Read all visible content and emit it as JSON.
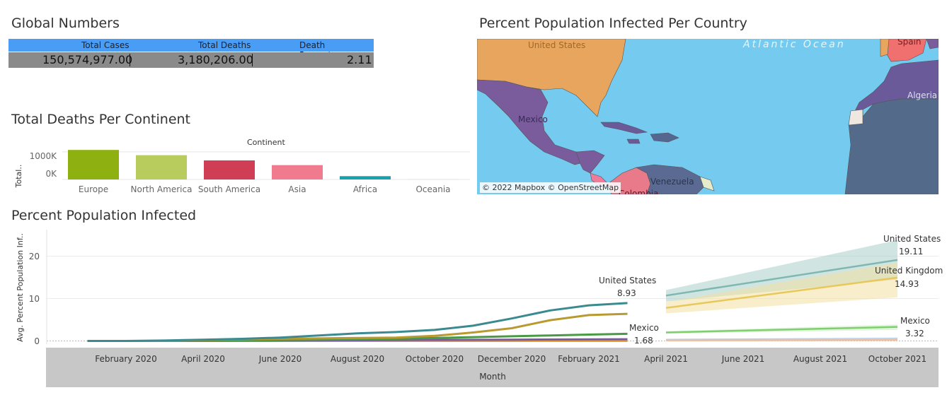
{
  "global_numbers": {
    "title": "Global Numbers",
    "columns": [
      "Total Cases",
      "Total Deaths",
      "Death Percentage"
    ],
    "values": [
      "150,574,977.00",
      "3,180,206.00",
      "2.11"
    ],
    "header_color": "#4a9df5"
  },
  "continent_chart": {
    "title": "Total Deaths Per Continent",
    "header": "Continent",
    "y_axis_label": "Total..",
    "y_ticks": [
      "1000K",
      "0K"
    ]
  },
  "map": {
    "title": "Percent Population Infected Per Country",
    "labels": [
      "United States",
      "Atlantic Ocean",
      "Spain",
      "Mexico",
      "Algeria",
      "Venezuela",
      "Colombia"
    ],
    "credit": "© 2022 Mapbox © OpenStreetMap",
    "ocean_color": "#75cbef"
  },
  "line_chart": {
    "title": "Percent Population Infected",
    "y_axis_label": "Avg. Percent Population Inf..",
    "x_axis_label": "Month",
    "y_ticks": [
      "20",
      "10",
      "0"
    ],
    "months": [
      "February 2020",
      "April 2020",
      "June 2020",
      "August 2020",
      "October 2020",
      "December 2020",
      "February 2021",
      "April 2021",
      "June 2021",
      "August 2021",
      "October 2021"
    ],
    "annotations": {
      "us_name": "United States",
      "us_value": "8.93",
      "mx_name": "Mexico",
      "mx_value": "1.68",
      "us_fc_name": "United States",
      "us_fc_value": "19.11",
      "uk_fc_name": "United Kingdom",
      "uk_fc_value": "14.93",
      "mx_fc_name": "Mexico",
      "mx_fc_value": "3.32"
    }
  },
  "chart_data": [
    {
      "type": "bar",
      "title": "Total Deaths Per Continent",
      "xlabel": "Continent",
      "ylabel": "Total..",
      "categories": [
        "Europe",
        "North America",
        "South America",
        "Asia",
        "Africa",
        "Oceania"
      ],
      "values": [
        1070000,
        880000,
        690000,
        520000,
        120000,
        1000
      ],
      "colors": [
        "#8fb011",
        "#b7cc5c",
        "#d03e55",
        "#f07a8e",
        "#1aa0ad",
        "#1aa0ad"
      ],
      "ylim": [
        0,
        1100000
      ],
      "y_ticks": [
        "1000K",
        "0K"
      ]
    },
    {
      "type": "line",
      "title": "Percent Population Infected",
      "xlabel": "Month",
      "ylabel": "Avg. Percent Population Inf..",
      "ylim": [
        -1,
        25
      ],
      "x_ticks": [
        "February 2020",
        "April 2020",
        "June 2020",
        "August 2020",
        "October 2020",
        "December 2020",
        "February 2021",
        "April 2021",
        "June 2021",
        "August 2021",
        "October 2021"
      ],
      "series": [
        {
          "name": "United States",
          "color": "#3a8a8f",
          "x": [
            "2020-01",
            "2020-02",
            "2020-03",
            "2020-04",
            "2020-05",
            "2020-06",
            "2020-07",
            "2020-08",
            "2020-09",
            "2020-10",
            "2020-11",
            "2020-12",
            "2021-01",
            "2021-02",
            "2021-03"
          ],
          "y": [
            0.0,
            0.0,
            0.1,
            0.3,
            0.5,
            0.8,
            1.3,
            1.8,
            2.1,
            2.6,
            3.6,
            5.3,
            7.2,
            8.4,
            8.93
          ]
        },
        {
          "color": "#b89a30",
          "x": [
            "2020-01",
            "2020-02",
            "2020-03",
            "2020-04",
            "2020-05",
            "2020-06",
            "2020-07",
            "2020-08",
            "2020-09",
            "2020-10",
            "2020-11",
            "2020-12",
            "2021-01",
            "2021-02",
            "2021-03"
          ],
          "y": [
            0.0,
            0.0,
            0.0,
            0.2,
            0.4,
            0.5,
            0.6,
            0.7,
            0.8,
            1.2,
            2.0,
            3.0,
            4.9,
            6.1,
            6.4
          ]
        },
        {
          "name": "Mexico",
          "color": "#4a9a45",
          "x": [
            "2020-01",
            "2020-02",
            "2020-03",
            "2020-04",
            "2020-05",
            "2020-06",
            "2020-07",
            "2020-08",
            "2020-09",
            "2020-10",
            "2020-11",
            "2020-12",
            "2021-01",
            "2021-02",
            "2021-03"
          ],
          "y": [
            0.0,
            0.0,
            0.0,
            0.0,
            0.1,
            0.2,
            0.3,
            0.4,
            0.5,
            0.7,
            0.9,
            1.1,
            1.3,
            1.5,
            1.68
          ]
        },
        {
          "color": "#7a5aa0",
          "x": [
            "2020-01",
            "2020-03",
            "2020-06",
            "2020-09",
            "2020-12",
            "2021-03"
          ],
          "y": [
            0.0,
            0.0,
            0.1,
            0.2,
            0.3,
            0.4
          ]
        },
        {
          "color": "#e8a13a",
          "x": [
            "2020-01",
            "2020-02",
            "2020-06",
            "2020-12",
            "2021-03"
          ],
          "y": [
            0.0,
            0.0,
            0.0,
            0.0,
            0.0
          ]
        }
      ],
      "forecast": [
        {
          "name": "United States",
          "color": "#7fb8b1",
          "band_color": "#a9cfca",
          "x": [
            "2021-04",
            "2021-10"
          ],
          "y": [
            10.7,
            19.11
          ],
          "lower": [
            9.3,
            14.5
          ],
          "upper": [
            12.0,
            23.8
          ]
        },
        {
          "name": "United Kingdom",
          "color": "#e8c85a",
          "band_color": "#f3e0a0",
          "x": [
            "2021-04",
            "2021-10"
          ],
          "y": [
            7.8,
            14.93
          ],
          "lower": [
            6.5,
            10.3
          ],
          "upper": [
            9.2,
            18.5
          ]
        },
        {
          "name": "Mexico",
          "color": "#7fcf6f",
          "band_color": "#c8ecc0",
          "x": [
            "2021-04",
            "2021-10"
          ],
          "y": [
            2.0,
            3.32
          ],
          "lower": [
            1.7,
            2.6
          ],
          "upper": [
            2.3,
            3.9
          ]
        },
        {
          "color": "#b0d0f0",
          "band_color": "#dceaf8",
          "x": [
            "2021-04",
            "2021-10"
          ],
          "y": [
            0.3,
            0.5
          ],
          "lower": [
            0.2,
            0.2
          ],
          "upper": [
            0.5,
            0.9
          ]
        },
        {
          "color": "#f0c0a0",
          "band_color": "#f8e0d0",
          "x": [
            "2021-04",
            "2021-10"
          ],
          "y": [
            0.1,
            0.2
          ],
          "lower": [
            0.0,
            0.0
          ],
          "upper": [
            0.2,
            0.4
          ]
        }
      ]
    }
  ]
}
